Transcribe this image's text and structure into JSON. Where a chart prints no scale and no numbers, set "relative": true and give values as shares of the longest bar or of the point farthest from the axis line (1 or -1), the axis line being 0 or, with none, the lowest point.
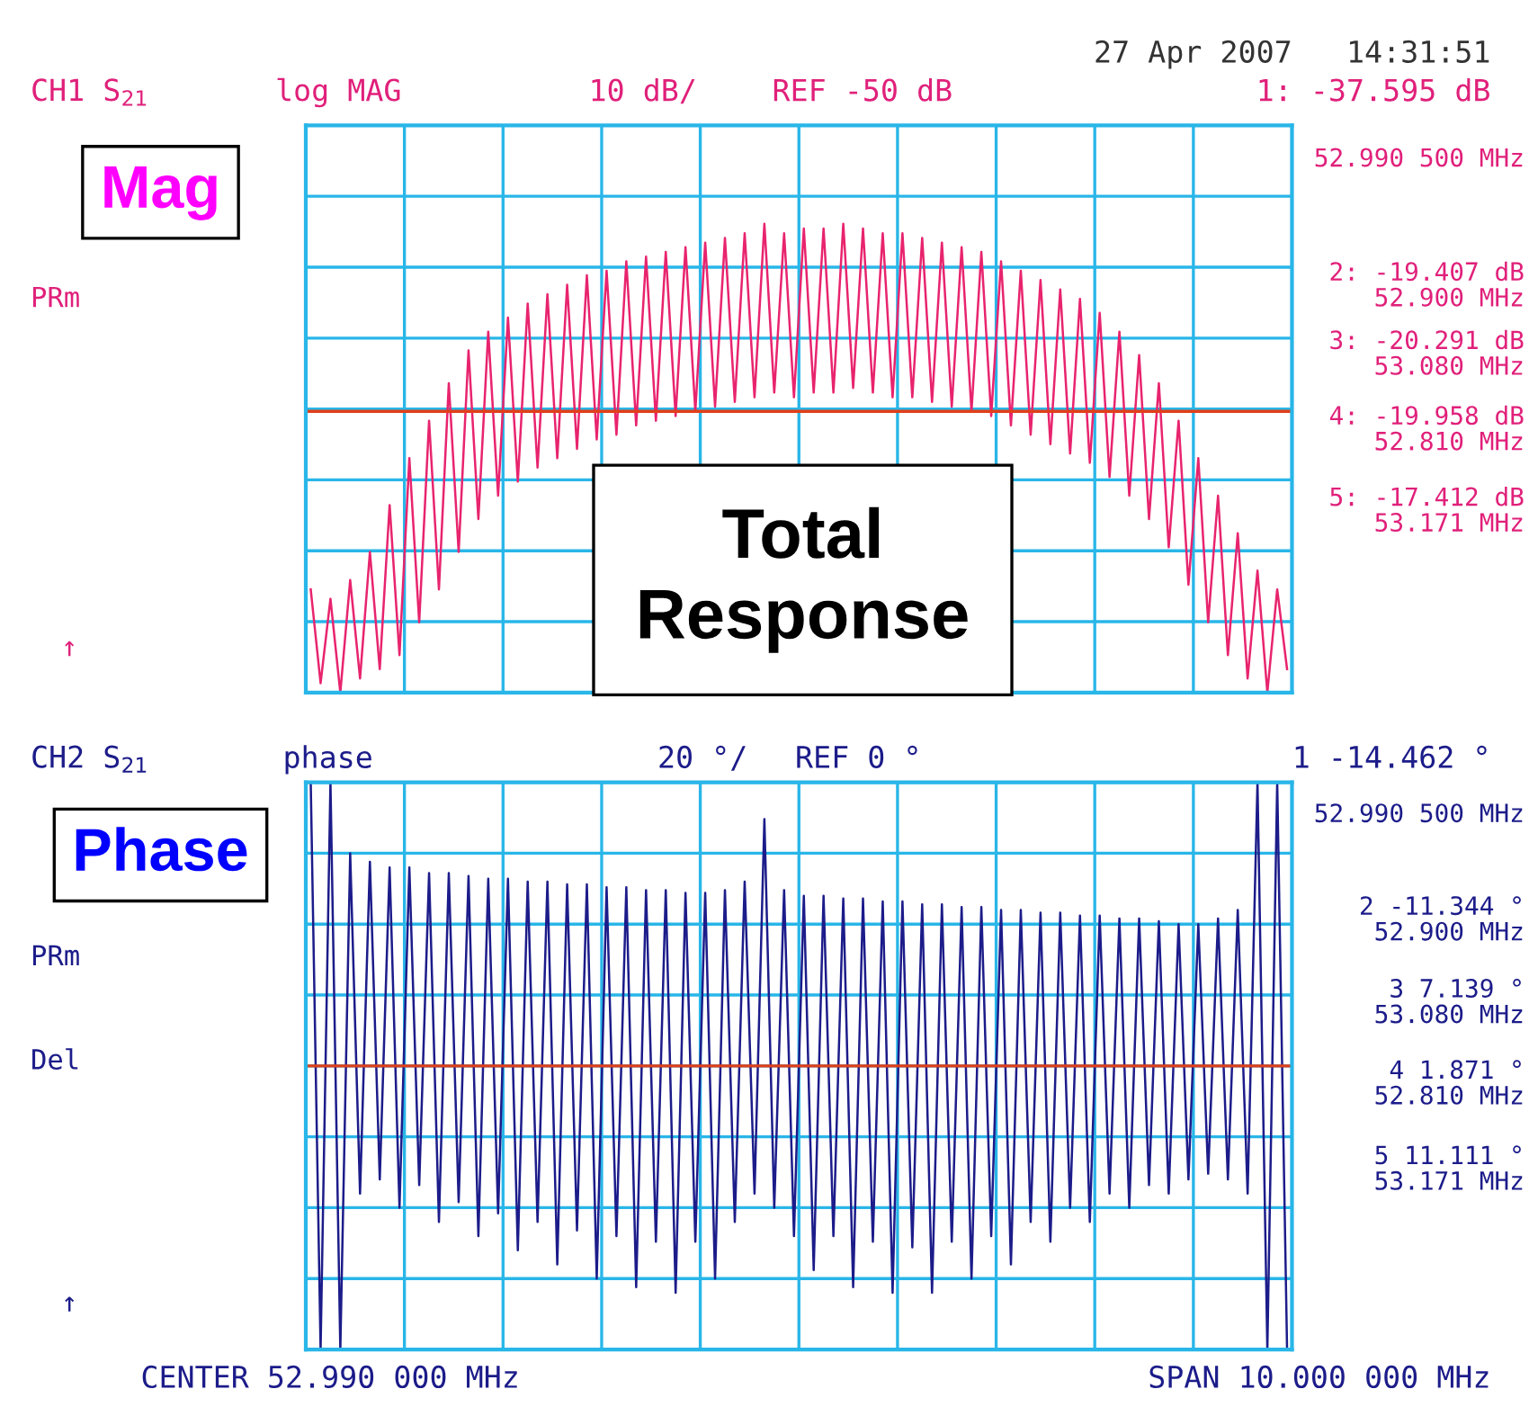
{
  "chart_data": [
    {
      "type": "line",
      "relative": true,
      "grid": true,
      "tick_labels": false,
      "categories": [
        null,
        null,
        null,
        null,
        null,
        null,
        null,
        null,
        null,
        null,
        null,
        null,
        null,
        null,
        null,
        null,
        null,
        null,
        null,
        null,
        null,
        null,
        null,
        null,
        null,
        null,
        null,
        null,
        null,
        null,
        null,
        null,
        null,
        null,
        null,
        null,
        null,
        null,
        null,
        null,
        null,
        null,
        null,
        null,
        null,
        null,
        null,
        null,
        null,
        null,
        null,
        null,
        null,
        null,
        null,
        null,
        null,
        null,
        null,
        null,
        null,
        null,
        null,
        null,
        null,
        null,
        null,
        null,
        null,
        null,
        null,
        null,
        null,
        null,
        null,
        null,
        null,
        null,
        null,
        null,
        null,
        null,
        null,
        null,
        null,
        null,
        null,
        null,
        null,
        null,
        null,
        null,
        null,
        null,
        null,
        null,
        null,
        null,
        null,
        null
      ],
      "series": [
        {
          "color": "#e8246e",
          "values": [
            0.22,
            0.02,
            0.2,
            0.0,
            0.24,
            0.03,
            0.3,
            0.05,
            0.4,
            0.08,
            0.5,
            0.15,
            0.58,
            0.22,
            0.66,
            0.3,
            0.73,
            0.37,
            0.77,
            0.42,
            0.8,
            0.45,
            0.83,
            0.48,
            0.85,
            0.5,
            0.87,
            0.52,
            0.89,
            0.54,
            0.9,
            0.55,
            0.92,
            0.57,
            0.93,
            0.58,
            0.94,
            0.59,
            0.95,
            0.6,
            0.96,
            0.61,
            0.97,
            0.62,
            0.98,
            0.63,
            1.0,
            0.64,
            0.98,
            0.63,
            0.99,
            0.64,
            0.99,
            0.64,
            1.0,
            0.65,
            0.99,
            0.64,
            0.98,
            0.63,
            0.98,
            0.63,
            0.97,
            0.62,
            0.96,
            0.61,
            0.95,
            0.6,
            0.94,
            0.59,
            0.92,
            0.57,
            0.9,
            0.55,
            0.88,
            0.53,
            0.86,
            0.51,
            0.84,
            0.49,
            0.81,
            0.46,
            0.77,
            0.42,
            0.72,
            0.37,
            0.66,
            0.31,
            0.58,
            0.23,
            0.5,
            0.15,
            0.42,
            0.08,
            0.34,
            0.03,
            0.26,
            0.0,
            0.22,
            0.05
          ]
        }
      ],
      "ref_lines": [
        {
          "axis": "y",
          "value": 0.6,
          "color": "#e0401a"
        }
      ],
      "annotations": [
        "27 Apr 2007   14:31:51",
        "CH1 S$_{21}$",
        "log MAG",
        "10 dB/",
        "REF -50 dB",
        "1: -37.595 dB",
        "52.990 500 MHz",
        "2: -19.407 dB",
        "52.900 MHz",
        "3: -20.291 dB",
        "53.080 MHz",
        "4: -19.958 dB",
        "52.810 MHz",
        "5: -17.412 dB",
        "53.171 MHz",
        "PRm",
        "↑",
        "Mag",
        "Total\nResponse"
      ]
    },
    {
      "type": "line",
      "relative": true,
      "grid": true,
      "tick_labels": false,
      "categories": [
        null,
        null,
        null,
        null,
        null,
        null,
        null,
        null,
        null,
        null,
        null,
        null,
        null,
        null,
        null,
        null,
        null,
        null,
        null,
        null,
        null,
        null,
        null,
        null,
        null,
        null,
        null,
        null,
        null,
        null,
        null,
        null,
        null,
        null,
        null,
        null,
        null,
        null,
        null,
        null,
        null,
        null,
        null,
        null,
        null,
        null,
        null,
        null,
        null,
        null,
        null,
        null,
        null,
        null,
        null,
        null,
        null,
        null,
        null,
        null,
        null,
        null,
        null,
        null,
        null,
        null,
        null,
        null,
        null,
        null,
        null,
        null,
        null,
        null,
        null,
        null,
        null,
        null,
        null,
        null,
        null,
        null,
        null,
        null,
        null,
        null,
        null,
        null,
        null,
        null,
        null,
        null,
        null,
        null,
        null,
        null,
        null,
        null,
        null,
        null
      ],
      "series": [
        {
          "color": "#1c1c8a",
          "values": [
            1.0,
            -1.0,
            1.0,
            -1.0,
            0.75,
            -0.45,
            0.72,
            -0.4,
            0.7,
            -0.5,
            0.7,
            -0.42,
            0.68,
            -0.55,
            0.68,
            -0.48,
            0.67,
            -0.6,
            0.66,
            -0.52,
            0.66,
            -0.65,
            0.65,
            -0.55,
            0.65,
            -0.7,
            0.64,
            -0.58,
            0.64,
            -0.75,
            0.63,
            -0.6,
            0.63,
            -0.78,
            0.62,
            -0.62,
            0.62,
            -0.8,
            0.61,
            -0.62,
            0.61,
            -0.75,
            0.62,
            -0.55,
            0.65,
            -0.45,
            0.87,
            -0.5,
            0.62,
            -0.6,
            0.6,
            -0.72,
            0.6,
            -0.6,
            0.59,
            -0.78,
            0.59,
            -0.62,
            0.58,
            -0.8,
            0.58,
            -0.64,
            0.57,
            -0.8,
            0.57,
            -0.62,
            0.56,
            -0.75,
            0.56,
            -0.6,
            0.55,
            -0.7,
            0.55,
            -0.55,
            0.54,
            -0.62,
            0.54,
            -0.5,
            0.53,
            -0.55,
            0.53,
            -0.45,
            0.52,
            -0.5,
            0.52,
            -0.42,
            0.51,
            -0.45,
            0.5,
            -0.4,
            0.5,
            -0.38,
            0.52,
            -0.4,
            0.55,
            -0.45,
            1.0,
            -1.0,
            1.0,
            -1.0
          ]
        }
      ],
      "ref_lines": [
        {
          "axis": "y",
          "value": 0,
          "color": "#e0401a"
        }
      ],
      "annotations": [
        "CH2 S$_{21}$",
        "phase",
        "20 °/",
        "REF 0 °",
        "1 -14.462 °",
        "52.990 500 MHz",
        "2 -11.344 °",
        "52.900 MHz",
        "3 7.139 °",
        "53.080 MHz",
        "4 1.871 °",
        "52.810 MHz",
        "5 11.111 °",
        "53.171 MHz",
        "PRm",
        "Del",
        "↑",
        "Phase",
        "CENTER 52.990 000 MHz",
        "SPAN 10.000 000 MHz"
      ]
    }
  ]
}
